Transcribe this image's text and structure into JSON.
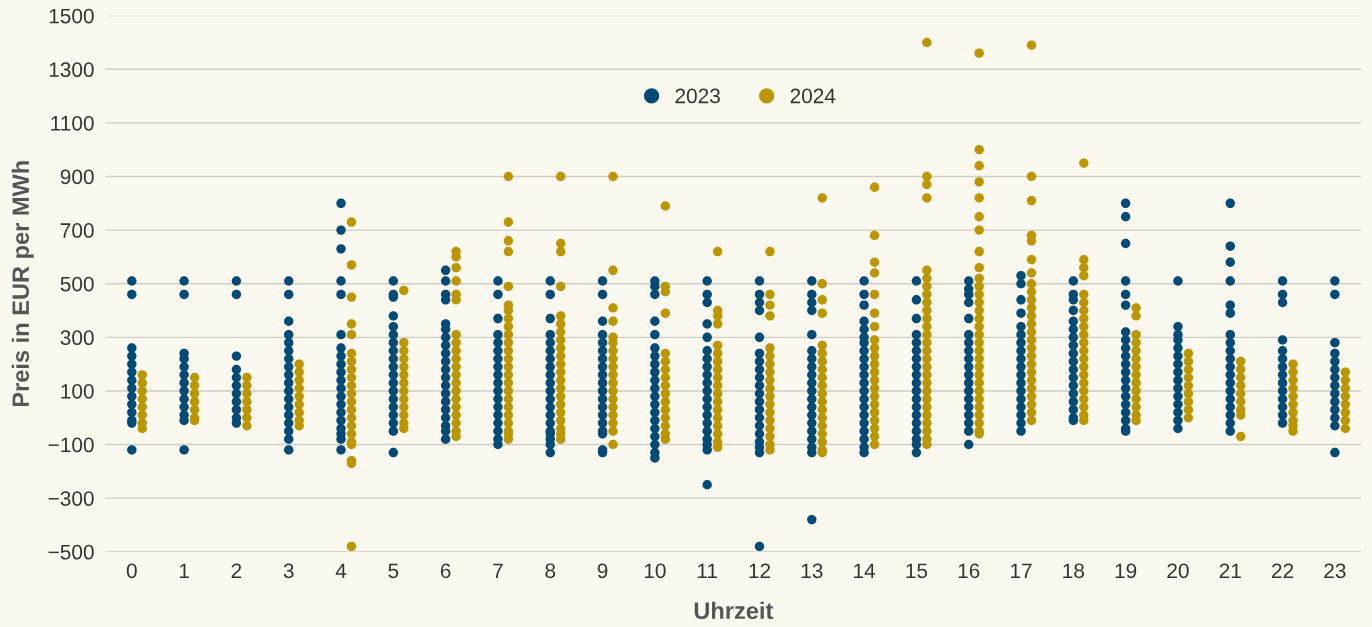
{
  "chart_data": {
    "type": "scatter",
    "xlabel": "Uhrzeit",
    "ylabel": "Preis in EUR per MWh",
    "xlim": [
      -0.5,
      23.5
    ],
    "xticks": [
      0,
      1,
      2,
      3,
      4,
      5,
      6,
      7,
      8,
      9,
      10,
      11,
      12,
      13,
      14,
      15,
      16,
      17,
      18,
      19,
      20,
      21,
      22,
      23
    ],
    "ylim": [
      -500,
      1500
    ],
    "yticks": [
      {
        "value": -500,
        "label": "−500"
      },
      {
        "value": -300,
        "label": "−300"
      },
      {
        "value": -100,
        "label": "−100"
      },
      100,
      300,
      500,
      700,
      900,
      1100,
      1300,
      1500
    ],
    "grid": "y",
    "legend": "top",
    "marker": "circle",
    "series": [
      {
        "name": "2023",
        "color": "#004b75",
        "x": [
          0,
          0,
          0,
          0,
          0,
          0,
          0,
          0,
          0,
          0,
          0,
          0,
          0,
          0,
          1,
          1,
          1,
          1,
          1,
          1,
          1,
          1,
          1,
          1,
          1,
          1,
          1,
          2,
          2,
          2,
          2,
          2,
          2,
          2,
          2,
          2,
          2,
          2,
          3,
          3,
          3,
          3,
          3,
          3,
          3,
          3,
          3,
          3,
          3,
          3,
          3,
          3,
          3,
          3,
          3,
          3,
          4,
          4,
          4,
          4,
          4,
          4,
          4,
          4,
          4,
          4,
          4,
          4,
          4,
          4,
          4,
          4,
          4,
          4,
          4,
          4,
          5,
          5,
          5,
          5,
          5,
          5,
          5,
          5,
          5,
          5,
          5,
          5,
          5,
          5,
          5,
          5,
          5,
          5,
          5,
          6,
          6,
          6,
          6,
          6,
          6,
          6,
          6,
          6,
          6,
          6,
          6,
          6,
          6,
          6,
          6,
          6,
          6,
          6,
          6,
          7,
          7,
          7,
          7,
          7,
          7,
          7,
          7,
          7,
          7,
          7,
          7,
          7,
          7,
          7,
          7,
          7,
          7,
          8,
          8,
          8,
          8,
          8,
          8,
          8,
          8,
          8,
          8,
          8,
          8,
          8,
          8,
          8,
          8,
          8,
          8,
          8,
          8,
          9,
          9,
          9,
          9,
          9,
          9,
          9,
          9,
          9,
          9,
          9,
          9,
          9,
          9,
          9,
          9,
          9,
          9,
          9,
          10,
          10,
          10,
          10,
          10,
          10,
          10,
          10,
          10,
          10,
          10,
          10,
          10,
          10,
          10,
          10,
          10,
          10,
          10,
          10,
          11,
          11,
          11,
          11,
          11,
          11,
          11,
          11,
          11,
          11,
          11,
          11,
          11,
          11,
          11,
          11,
          11,
          11,
          11,
          11,
          12,
          12,
          12,
          12,
          12,
          12,
          12,
          12,
          12,
          12,
          12,
          12,
          12,
          12,
          12,
          12,
          12,
          12,
          12,
          12,
          13,
          13,
          13,
          13,
          13,
          13,
          13,
          13,
          13,
          13,
          13,
          13,
          13,
          13,
          13,
          13,
          13,
          13,
          13,
          13,
          14,
          14,
          14,
          14,
          14,
          14,
          14,
          14,
          14,
          14,
          14,
          14,
          14,
          14,
          14,
          14,
          14,
          14,
          14,
          14,
          14,
          15,
          15,
          15,
          15,
          15,
          15,
          15,
          15,
          15,
          15,
          15,
          15,
          15,
          15,
          15,
          15,
          15,
          15,
          15,
          16,
          16,
          16,
          16,
          16,
          16,
          16,
          16,
          16,
          16,
          16,
          16,
          16,
          16,
          16,
          16,
          16,
          16,
          16,
          17,
          17,
          17,
          17,
          17,
          17,
          17,
          17,
          17,
          17,
          17,
          17,
          17,
          17,
          17,
          17,
          17,
          17,
          18,
          18,
          18,
          18,
          18,
          18,
          18,
          18,
          18,
          18,
          18,
          18,
          18,
          18,
          18,
          18,
          18,
          18,
          19,
          19,
          19,
          19,
          19,
          19,
          19,
          19,
          19,
          19,
          19,
          19,
          19,
          19,
          19,
          19,
          19,
          19,
          19,
          19,
          20,
          20,
          20,
          20,
          20,
          20,
          20,
          20,
          20,
          20,
          20,
          20,
          20,
          20,
          20,
          21,
          21,
          21,
          21,
          21,
          21,
          21,
          21,
          21,
          21,
          21,
          21,
          21,
          21,
          21,
          21,
          21,
          21,
          21,
          22,
          22,
          22,
          22,
          22,
          22,
          22,
          22,
          22,
          22,
          22,
          22,
          22,
          22,
          23,
          23,
          23,
          23,
          23,
          23,
          23,
          23,
          23,
          23,
          23,
          23,
          23,
          23
        ],
        "values": [
          510,
          460,
          260,
          230,
          200,
          170,
          140,
          110,
          80,
          50,
          20,
          -10,
          -20,
          -120,
          510,
          460,
          240,
          220,
          190,
          160,
          130,
          100,
          70,
          40,
          10,
          -10,
          -120,
          510,
          460,
          230,
          180,
          150,
          120,
          90,
          60,
          30,
          0,
          -20,
          510,
          460,
          360,
          310,
          280,
          250,
          220,
          190,
          160,
          130,
          100,
          70,
          40,
          10,
          -20,
          -50,
          -80,
          -120,
          800,
          700,
          630,
          510,
          460,
          310,
          260,
          230,
          200,
          170,
          140,
          110,
          80,
          50,
          20,
          -10,
          -40,
          -60,
          -80,
          -120,
          510,
          460,
          450,
          380,
          340,
          310,
          280,
          250,
          220,
          190,
          160,
          130,
          100,
          70,
          40,
          10,
          -20,
          -50,
          -130,
          550,
          510,
          460,
          440,
          350,
          330,
          300,
          270,
          240,
          210,
          180,
          150,
          120,
          90,
          60,
          30,
          0,
          -30,
          -50,
          -80,
          510,
          460,
          370,
          310,
          280,
          250,
          220,
          190,
          160,
          130,
          100,
          70,
          40,
          10,
          -20,
          -50,
          -80,
          -100,
          510,
          460,
          370,
          310,
          280,
          250,
          220,
          190,
          160,
          130,
          100,
          70,
          40,
          10,
          -20,
          -50,
          -60,
          -80,
          -100,
          -130,
          510,
          460,
          360,
          310,
          280,
          250,
          220,
          190,
          160,
          130,
          100,
          70,
          40,
          10,
          -20,
          -50,
          -60,
          -120,
          -130,
          510,
          490,
          460,
          360,
          310,
          260,
          230,
          200,
          170,
          140,
          110,
          80,
          50,
          20,
          -10,
          -40,
          -70,
          -100,
          -130,
          -150,
          510,
          460,
          430,
          350,
          300,
          250,
          220,
          190,
          160,
          130,
          100,
          70,
          40,
          10,
          -20,
          -50,
          -80,
          -100,
          -120,
          -250,
          510,
          460,
          430,
          400,
          300,
          240,
          210,
          180,
          150,
          120,
          90,
          60,
          30,
          0,
          -30,
          -60,
          -90,
          -110,
          -130,
          -480,
          510,
          460,
          430,
          400,
          310,
          250,
          220,
          190,
          160,
          130,
          100,
          70,
          40,
          10,
          -20,
          -50,
          -80,
          -110,
          -130,
          -380,
          510,
          460,
          420,
          360,
          330,
          300,
          280,
          250,
          220,
          190,
          160,
          130,
          100,
          70,
          40,
          10,
          -20,
          -50,
          -80,
          -110,
          -130,
          510,
          440,
          370,
          310,
          280,
          250,
          220,
          190,
          160,
          130,
          100,
          70,
          40,
          10,
          -20,
          -50,
          -80,
          -100,
          -130,
          510,
          480,
          460,
          430,
          370,
          310,
          280,
          250,
          220,
          190,
          160,
          130,
          100,
          70,
          40,
          10,
          -20,
          -50,
          -100,
          530,
          500,
          440,
          390,
          340,
          310,
          280,
          250,
          220,
          190,
          160,
          130,
          100,
          70,
          40,
          10,
          -20,
          -50,
          510,
          460,
          440,
          400,
          360,
          330,
          300,
          270,
          240,
          210,
          180,
          150,
          120,
          90,
          60,
          30,
          0,
          -10,
          800,
          750,
          650,
          510,
          460,
          420,
          320,
          290,
          260,
          230,
          200,
          170,
          140,
          110,
          80,
          50,
          20,
          -10,
          -40,
          -50,
          510,
          340,
          310,
          290,
          260,
          230,
          200,
          170,
          140,
          110,
          80,
          50,
          20,
          -10,
          -40,
          800,
          640,
          580,
          510,
          420,
          390,
          310,
          280,
          250,
          220,
          190,
          160,
          130,
          100,
          70,
          40,
          10,
          -20,
          -50,
          510,
          460,
          430,
          290,
          250,
          220,
          190,
          160,
          130,
          100,
          70,
          40,
          10,
          -20,
          510,
          460,
          280,
          240,
          210,
          180,
          150,
          120,
          90,
          60,
          30,
          0,
          -30,
          -130
        ]
      },
      {
        "name": "2024",
        "color": "#bb9600",
        "x": [
          0.2,
          0.2,
          0.2,
          0.2,
          0.2,
          0.2,
          0.2,
          0.2,
          1.2,
          1.2,
          1.2,
          1.2,
          1.2,
          1.2,
          1.2,
          2.2,
          2.2,
          2.2,
          2.2,
          2.2,
          2.2,
          2.2,
          3.2,
          3.2,
          3.2,
          3.2,
          3.2,
          3.2,
          3.2,
          3.2,
          3.2,
          4.2,
          4.2,
          4.2,
          4.2,
          4.2,
          4.2,
          4.2,
          4.2,
          4.2,
          4.2,
          4.2,
          4.2,
          4.2,
          4.2,
          4.2,
          4.2,
          4.2,
          4.2,
          4.2,
          4.2,
          4.2,
          5.2,
          5.2,
          5.2,
          5.2,
          5.2,
          5.2,
          5.2,
          5.2,
          5.2,
          5.2,
          5.2,
          5.2,
          5.2,
          6.2,
          6.2,
          6.2,
          6.2,
          6.2,
          6.2,
          6.2,
          6.2,
          6.2,
          6.2,
          6.2,
          6.2,
          6.2,
          6.2,
          6.2,
          6.2,
          6.2,
          6.2,
          6.2,
          6.2,
          7.2,
          7.2,
          7.2,
          7.2,
          7.2,
          7.2,
          7.2,
          7.2,
          7.2,
          7.2,
          7.2,
          7.2,
          7.2,
          7.2,
          7.2,
          7.2,
          7.2,
          7.2,
          7.2,
          7.2,
          7.2,
          7.2,
          7.2,
          7.2,
          8.2,
          8.2,
          8.2,
          8.2,
          8.2,
          8.2,
          8.2,
          8.2,
          8.2,
          8.2,
          8.2,
          8.2,
          8.2,
          8.2,
          8.2,
          8.2,
          8.2,
          8.2,
          8.2,
          8.2,
          8.2,
          9.2,
          9.2,
          9.2,
          9.2,
          9.2,
          9.2,
          9.2,
          9.2,
          9.2,
          9.2,
          9.2,
          9.2,
          9.2,
          9.2,
          9.2,
          9.2,
          9.2,
          9.2,
          10.2,
          10.2,
          10.2,
          10.2,
          10.2,
          10.2,
          10.2,
          10.2,
          10.2,
          10.2,
          10.2,
          10.2,
          10.2,
          10.2,
          10.2,
          10.2,
          11.2,
          11.2,
          11.2,
          11.2,
          11.2,
          11.2,
          11.2,
          11.2,
          11.2,
          11.2,
          11.2,
          11.2,
          11.2,
          11.2,
          11.2,
          11.2,
          11.2,
          11.2,
          12.2,
          12.2,
          12.2,
          12.2,
          12.2,
          12.2,
          12.2,
          12.2,
          12.2,
          12.2,
          12.2,
          12.2,
          12.2,
          12.2,
          12.2,
          12.2,
          12.2,
          12.2,
          13.2,
          13.2,
          13.2,
          13.2,
          13.2,
          13.2,
          13.2,
          13.2,
          13.2,
          13.2,
          13.2,
          13.2,
          13.2,
          13.2,
          13.2,
          13.2,
          13.2,
          13.2,
          13.2,
          14.2,
          14.2,
          14.2,
          14.2,
          14.2,
          14.2,
          14.2,
          14.2,
          14.2,
          14.2,
          14.2,
          14.2,
          14.2,
          14.2,
          14.2,
          14.2,
          14.2,
          14.2,
          14.2,
          14.2,
          14.2,
          15.2,
          15.2,
          15.2,
          15.2,
          15.2,
          15.2,
          15.2,
          15.2,
          15.2,
          15.2,
          15.2,
          15.2,
          15.2,
          15.2,
          15.2,
          15.2,
          15.2,
          15.2,
          15.2,
          15.2,
          15.2,
          15.2,
          15.2,
          15.2,
          15.2,
          15.2,
          15.2,
          16.2,
          16.2,
          16.2,
          16.2,
          16.2,
          16.2,
          16.2,
          16.2,
          16.2,
          16.2,
          16.2,
          16.2,
          16.2,
          16.2,
          16.2,
          16.2,
          16.2,
          16.2,
          16.2,
          16.2,
          16.2,
          16.2,
          16.2,
          16.2,
          16.2,
          16.2,
          16.2,
          16.2,
          16.2,
          16.2,
          17.2,
          17.2,
          17.2,
          17.2,
          17.2,
          17.2,
          17.2,
          17.2,
          17.2,
          17.2,
          17.2,
          17.2,
          17.2,
          17.2,
          17.2,
          17.2,
          17.2,
          17.2,
          17.2,
          17.2,
          17.2,
          17.2,
          17.2,
          17.2,
          17.2,
          18.2,
          18.2,
          18.2,
          18.2,
          18.2,
          18.2,
          18.2,
          18.2,
          18.2,
          18.2,
          18.2,
          18.2,
          18.2,
          18.2,
          18.2,
          18.2,
          18.2,
          18.2,
          18.2,
          18.2,
          18.2,
          19.2,
          19.2,
          19.2,
          19.2,
          19.2,
          19.2,
          19.2,
          19.2,
          19.2,
          19.2,
          19.2,
          19.2,
          19.2,
          19.2,
          20.2,
          20.2,
          20.2,
          20.2,
          20.2,
          20.2,
          20.2,
          20.2,
          20.2,
          21.2,
          21.2,
          21.2,
          21.2,
          21.2,
          21.2,
          21.2,
          21.2,
          21.2,
          22.2,
          22.2,
          22.2,
          22.2,
          22.2,
          22.2,
          22.2,
          22.2,
          22.2,
          22.2,
          23.2,
          23.2,
          23.2,
          23.2,
          23.2,
          23.2,
          23.2,
          23.2
        ],
        "values": [
          160,
          130,
          100,
          70,
          40,
          10,
          -20,
          -40,
          150,
          120,
          90,
          60,
          30,
          0,
          -10,
          150,
          120,
          90,
          60,
          30,
          0,
          -30,
          200,
          170,
          140,
          110,
          80,
          50,
          20,
          -10,
          -30,
          730,
          570,
          450,
          350,
          310,
          240,
          210,
          180,
          150,
          120,
          90,
          60,
          30,
          0,
          -30,
          -60,
          -90,
          -100,
          -160,
          -170,
          -480,
          475,
          280,
          250,
          220,
          190,
          160,
          130,
          100,
          70,
          40,
          10,
          -20,
          -40,
          620,
          600,
          560,
          510,
          460,
          440,
          310,
          280,
          250,
          220,
          190,
          160,
          130,
          100,
          70,
          40,
          10,
          -20,
          -50,
          -70,
          900,
          730,
          660,
          620,
          490,
          420,
          400,
          370,
          340,
          310,
          280,
          250,
          220,
          190,
          160,
          130,
          100,
          70,
          40,
          10,
          -20,
          -50,
          -60,
          -80,
          900,
          650,
          620,
          490,
          380,
          350,
          320,
          290,
          260,
          230,
          200,
          170,
          140,
          110,
          80,
          50,
          20,
          -10,
          -40,
          -60,
          -80,
          900,
          550,
          410,
          360,
          300,
          280,
          250,
          220,
          190,
          160,
          130,
          100,
          70,
          40,
          10,
          -20,
          -50,
          -100,
          790,
          490,
          470,
          390,
          240,
          210,
          180,
          150,
          120,
          90,
          60,
          30,
          0,
          -30,
          -60,
          -80,
          620,
          400,
          380,
          350,
          270,
          240,
          210,
          180,
          150,
          120,
          90,
          60,
          30,
          0,
          -30,
          -60,
          -90,
          -110,
          620,
          460,
          420,
          380,
          260,
          230,
          200,
          170,
          140,
          110,
          80,
          50,
          20,
          -10,
          -40,
          -70,
          -100,
          -120,
          820,
          500,
          440,
          390,
          270,
          240,
          210,
          180,
          150,
          120,
          90,
          60,
          30,
          0,
          -30,
          -60,
          -90,
          -120,
          -130,
          860,
          680,
          580,
          540,
          460,
          390,
          340,
          290,
          260,
          230,
          200,
          170,
          140,
          110,
          80,
          50,
          20,
          -10,
          -40,
          -70,
          -100,
          1400,
          900,
          870,
          820,
          550,
          520,
          490,
          460,
          430,
          400,
          370,
          340,
          310,
          280,
          250,
          220,
          190,
          160,
          130,
          100,
          70,
          40,
          10,
          -20,
          -50,
          -80,
          -100,
          1360,
          1000,
          940,
          880,
          820,
          750,
          700,
          620,
          560,
          520,
          490,
          460,
          430,
          400,
          370,
          340,
          310,
          280,
          250,
          220,
          190,
          160,
          130,
          100,
          70,
          40,
          10,
          -20,
          -50,
          -60,
          1390,
          900,
          810,
          680,
          660,
          590,
          540,
          500,
          470,
          440,
          410,
          380,
          350,
          320,
          290,
          260,
          230,
          200,
          170,
          140,
          110,
          80,
          50,
          20,
          -10,
          950,
          590,
          560,
          530,
          460,
          430,
          400,
          370,
          340,
          310,
          280,
          250,
          220,
          190,
          160,
          130,
          100,
          70,
          40,
          10,
          -10,
          410,
          380,
          310,
          280,
          250,
          220,
          190,
          160,
          130,
          100,
          70,
          40,
          10,
          -10,
          240,
          210,
          180,
          150,
          120,
          90,
          60,
          30,
          0,
          210,
          180,
          150,
          120,
          90,
          60,
          30,
          10,
          -70,
          200,
          170,
          140,
          110,
          80,
          50,
          20,
          -10,
          -30,
          -50,
          170,
          140,
          110,
          80,
          50,
          20,
          -10,
          -40
        ]
      }
    ]
  }
}
